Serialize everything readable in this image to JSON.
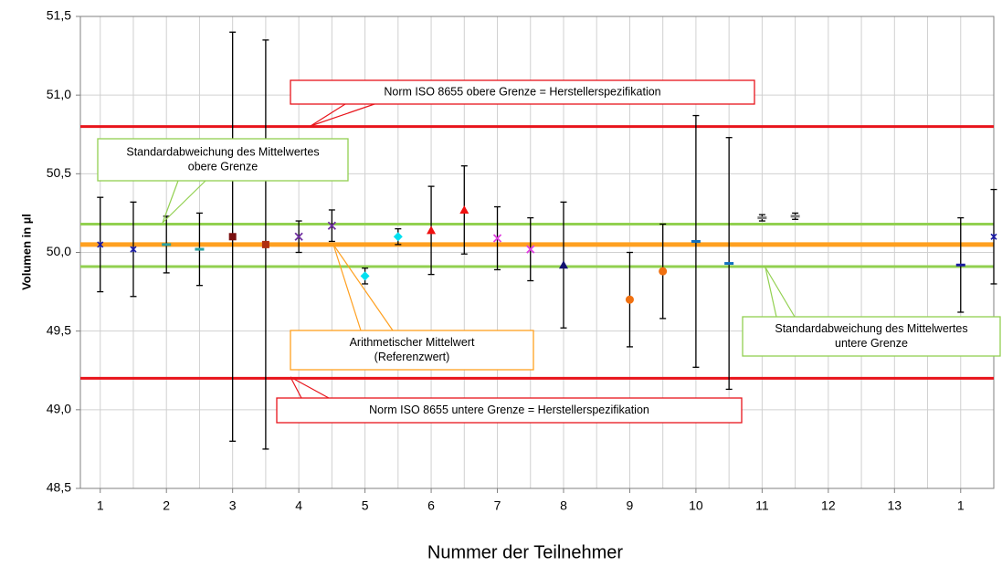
{
  "chart_data": {
    "type": "errorbar",
    "x_label": "Nummer der Teilnehmer",
    "y_label": "Volumen in µl",
    "xlim": [
      0.7,
      14.5
    ],
    "ylim": [
      48.5,
      51.5
    ],
    "xticks": [
      1,
      2,
      3,
      4,
      5,
      6,
      7,
      8,
      9,
      10,
      11,
      12,
      13,
      {
        "value": 14,
        "label": "1"
      }
    ],
    "x_minor_grid": [
      1.5,
      2.5,
      3.5,
      4.5,
      5.5,
      6.5,
      7.5,
      8.5,
      9.5,
      10.5,
      11.5,
      12.5,
      13.5
    ],
    "yticks": [
      {
        "value": 48.5,
        "label": "48,5"
      },
      {
        "value": 49.0,
        "label": "49,0"
      },
      {
        "value": 49.5,
        "label": "49,5"
      },
      {
        "value": 50.0,
        "label": "50,0"
      },
      {
        "value": 50.5,
        "label": "50,5"
      },
      {
        "value": 51.0,
        "label": "51,0"
      },
      {
        "value": 51.5,
        "label": "51,5"
      }
    ],
    "grid": true,
    "x": [
      1,
      1.5,
      2,
      2.5,
      3,
      3.5,
      4,
      4.5,
      5,
      5.5,
      6,
      6.5,
      7,
      7.5,
      8,
      9,
      9.5,
      10,
      10.5,
      11,
      11.5,
      14,
      14.5
    ],
    "values": [
      50.05,
      50.02,
      50.05,
      50.02,
      50.1,
      50.05,
      50.1,
      50.17,
      49.85,
      50.1,
      50.14,
      50.27,
      50.09,
      50.02,
      49.92,
      49.7,
      49.88,
      50.07,
      49.93,
      50.22,
      50.23,
      49.92,
      50.1
    ],
    "errors": [
      0.3,
      0.3,
      0.18,
      0.23,
      1.3,
      1.3,
      0.1,
      0.1,
      0.05,
      0.05,
      0.28,
      0.28,
      0.2,
      0.2,
      0.4,
      0.3,
      0.3,
      0.8,
      0.8,
      0.02,
      0.02,
      0.3,
      0.3
    ],
    "colors": [
      "#1a1aa0",
      "#1a1aa0",
      "#2aa0a0",
      "#2aa0a0",
      "#7a1010",
      "#b03010",
      "#7030a0",
      "#7030a0",
      "#00e0f0",
      "#00e0f0",
      "#f01010",
      "#f01010",
      "#e040e0",
      "#e040e0",
      "#101070",
      "#f07010",
      "#f07010",
      "#1070c0",
      "#1070c0",
      "#808080",
      "#808080",
      "#1a1aa0",
      "#1a1aa0"
    ],
    "markers": [
      "star",
      "star",
      "dash",
      "dash",
      "square",
      "square",
      "x",
      "x",
      "diamond",
      "diamond",
      "triangle",
      "triangle",
      "x",
      "x",
      "triangle",
      "circle",
      "circle",
      "dash",
      "dash",
      "dash",
      "dash",
      "dash",
      "star"
    ],
    "hlines": [
      {
        "value": 50.8,
        "color": "#e8141b"
      },
      {
        "value": 49.2,
        "color": "#e8141b"
      },
      {
        "value": 50.18,
        "color": "#92d050"
      },
      {
        "value": 49.91,
        "color": "#92d050"
      },
      {
        "value": 50.05,
        "color": "#ffa020"
      }
    ],
    "annotations": [
      {
        "lines": [
          "Norm ISO 8655 obere Grenze = Herstellerspezifikation"
        ],
        "color": "#e8141b"
      },
      {
        "lines": [
          "Standardabweichung des Mittelwertes",
          "obere Grenze"
        ],
        "color": "#92d050"
      },
      {
        "lines": [
          "Arithmetischer Mittelwert",
          "(Referenzwert)"
        ],
        "color": "#ffa020"
      },
      {
        "lines": [
          "Standardabweichung des Mittelwertes",
          "untere Grenze"
        ],
        "color": "#92d050"
      },
      {
        "lines": [
          "Norm ISO 8655 untere Grenze = Herstellerspezifikation"
        ],
        "color": "#e8141b"
      }
    ]
  }
}
